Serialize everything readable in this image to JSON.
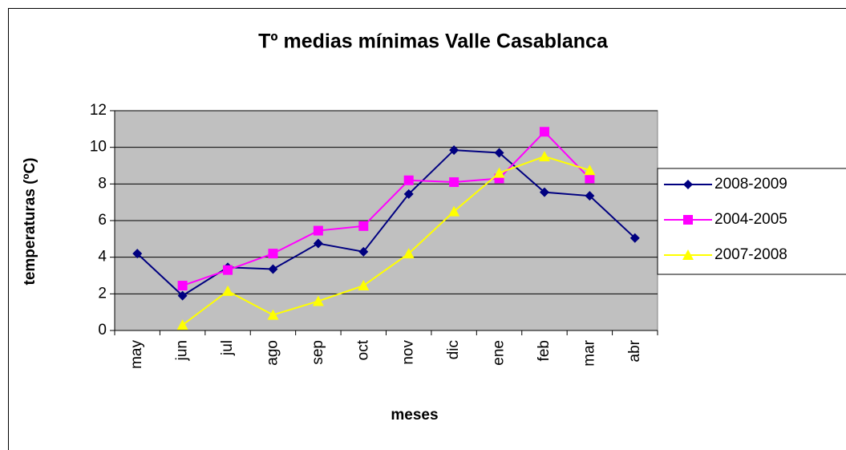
{
  "chart_data": {
    "type": "line",
    "title": "Tº medias mínimas Valle Casablanca",
    "x_label": "meses",
    "y_label": "temperaturas (ºC)",
    "categories": [
      "may",
      "jun",
      "jul",
      "ago",
      "sep",
      "oct",
      "nov",
      "dic",
      "ene",
      "feb",
      "mar",
      "abr"
    ],
    "series": [
      {
        "name": "2008-2009",
        "color": "#000080",
        "marker": "diamond",
        "values": [
          4.2,
          1.9,
          3.45,
          3.35,
          4.75,
          4.3,
          7.45,
          9.85,
          9.7,
          7.55,
          7.35,
          5.05
        ]
      },
      {
        "name": "2004-2005",
        "color": "#ff00ff",
        "marker": "square",
        "values": [
          null,
          2.45,
          3.3,
          4.2,
          5.45,
          5.7,
          8.2,
          8.1,
          8.3,
          10.85,
          8.3,
          null
        ]
      },
      {
        "name": "2007-2008",
        "color": "#ffff00",
        "marker": "triangle",
        "values": [
          null,
          0.3,
          2.15,
          0.85,
          1.6,
          2.45,
          4.2,
          6.5,
          8.6,
          9.5,
          8.75,
          null
        ]
      }
    ],
    "ylim": [
      0,
      12
    ],
    "yticks": [
      0,
      2,
      4,
      6,
      8,
      10,
      12
    ],
    "grid": true,
    "plot_background": "#c0c0c0",
    "legend": "right"
  }
}
